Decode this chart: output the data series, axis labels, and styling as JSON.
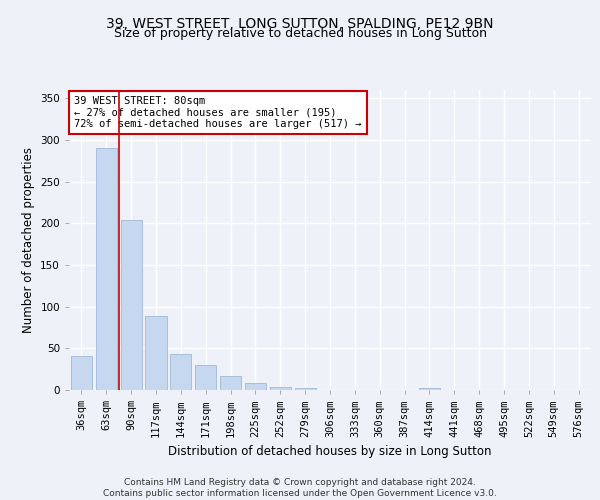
{
  "title_line1": "39, WEST STREET, LONG SUTTON, SPALDING, PE12 9BN",
  "title_line2": "Size of property relative to detached houses in Long Sutton",
  "xlabel": "Distribution of detached houses by size in Long Sutton",
  "ylabel": "Number of detached properties",
  "footnote": "Contains HM Land Registry data © Crown copyright and database right 2024.\nContains public sector information licensed under the Open Government Licence v3.0.",
  "bar_labels": [
    "36sqm",
    "63sqm",
    "90sqm",
    "117sqm",
    "144sqm",
    "171sqm",
    "198sqm",
    "225sqm",
    "252sqm",
    "279sqm",
    "306sqm",
    "333sqm",
    "360sqm",
    "387sqm",
    "414sqm",
    "441sqm",
    "468sqm",
    "495sqm",
    "522sqm",
    "549sqm",
    "576sqm"
  ],
  "bar_values": [
    41,
    291,
    204,
    89,
    43,
    30,
    17,
    8,
    4,
    3,
    0,
    0,
    0,
    0,
    3,
    0,
    0,
    0,
    0,
    0,
    0
  ],
  "bar_color": "#c5d8f0",
  "bar_edge_color": "#a0b8d8",
  "vline_color": "#cc0000",
  "annotation_text": "39 WEST STREET: 80sqm\n← 27% of detached houses are smaller (195)\n72% of semi-detached houses are larger (517) →",
  "annotation_box_color": "#ffffff",
  "annotation_box_edgecolor": "#cc0000",
  "ylim": [
    0,
    360
  ],
  "yticks": [
    0,
    50,
    100,
    150,
    200,
    250,
    300,
    350
  ],
  "background_color": "#eef2f8",
  "grid_color": "#ffffff",
  "title_fontsize": 10,
  "subtitle_fontsize": 9,
  "axis_label_fontsize": 8.5,
  "tick_fontsize": 7.5,
  "footnote_fontsize": 6.5
}
